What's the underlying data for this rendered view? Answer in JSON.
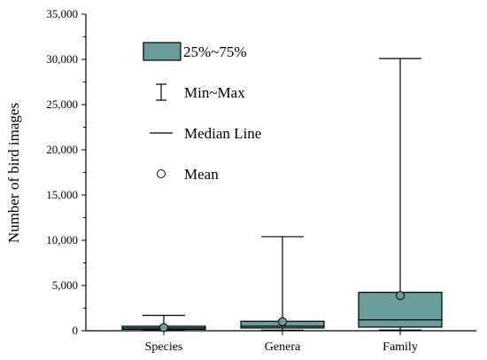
{
  "chart_data": {
    "type": "box",
    "ylabel": "Number of bird images",
    "ylim": [
      0,
      35000
    ],
    "y_ticks": [
      0,
      5000,
      10000,
      15000,
      20000,
      25000,
      30000,
      35000
    ],
    "y_tick_labels": [
      "0",
      "5,000",
      "10,000",
      "15,000",
      "20,000",
      "25,000",
      "30,000",
      "35,000"
    ],
    "categories": [
      "Species",
      "Genera",
      "Family"
    ],
    "box_color": "#6b9c9c",
    "series": [
      {
        "category": "Species",
        "min": 30,
        "q1": 150,
        "median": 300,
        "q3": 500,
        "max": 1700,
        "mean": 350
      },
      {
        "category": "Genera",
        "min": 60,
        "q1": 300,
        "median": 500,
        "q3": 1050,
        "max": 10400,
        "mean": 1000
      },
      {
        "category": "Family",
        "min": 80,
        "q1": 400,
        "median": 1200,
        "q3": 4250,
        "max": 30100,
        "mean": 3900
      }
    ],
    "legend": {
      "placement": "top-left",
      "items": [
        {
          "symbol": "box",
          "label": "25%~75%"
        },
        {
          "symbol": "whisker",
          "label": "Min~Max"
        },
        {
          "symbol": "line",
          "label": "Median Line"
        },
        {
          "symbol": "circle",
          "label": "Mean"
        }
      ]
    },
    "grid": false
  }
}
